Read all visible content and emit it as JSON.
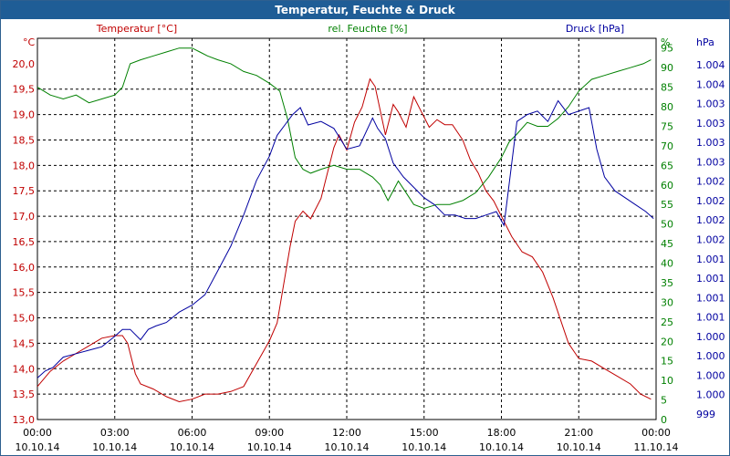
{
  "chart_data": {
    "type": "line",
    "title": "Temperatur, Feuchte & Druck",
    "legend": {
      "temperature": "Temperatur [°C]",
      "humidity": "rel. Feuchte [%]",
      "pressure": "Druck [hPa]"
    },
    "axes": {
      "left_unit": "°C",
      "right1_unit": "%",
      "right2_unit": "hPa",
      "left_ylim": [
        13.0,
        20.5
      ],
      "right1_ylim": [
        0,
        97.5
      ],
      "right2_ylim": [
        999.0,
        1004.5
      ],
      "left_ticks": [
        "20,0",
        "19,5",
        "19,0",
        "18,5",
        "18,0",
        "17,5",
        "17,0",
        "16,5",
        "16,0",
        "15,5",
        "15,0",
        "14,5",
        "14,0",
        "13,5",
        "13,0"
      ],
      "humidity_ticks": [
        "95",
        "90",
        "85",
        "80",
        "75",
        "70",
        "65",
        "60",
        "55",
        "50",
        "45",
        "40",
        "35",
        "30",
        "25",
        "20",
        "15",
        "10",
        "5",
        "0"
      ],
      "pressure_ticks": [
        "1.004",
        "1.004",
        "1.003",
        "1.003",
        "1.003",
        "1.003",
        "1.002",
        "1.002",
        "1.002",
        "1.002",
        "1.001",
        "1.001",
        "1.001",
        "1.001",
        "1.000",
        "1.000",
        "1.000",
        "1.000",
        "999"
      ],
      "x_time_labels": [
        "00:00",
        "03:00",
        "06:00",
        "09:00",
        "12:00",
        "15:00",
        "18:00",
        "21:00",
        "00:00"
      ],
      "x_date_labels": [
        "10.10.14",
        "10.10.14",
        "10.10.14",
        "10.10.14",
        "10.10.14",
        "10.10.14",
        "10.10.14",
        "10.10.14",
        "11.10.14"
      ],
      "xlim_hours": [
        0,
        24
      ]
    },
    "colors": {
      "temperature": "#c00000",
      "humidity": "#008000",
      "pressure": "#0000a0",
      "titlebar": "#1f5d96"
    },
    "series": [
      {
        "name": "Temperatur [°C]",
        "key": "temperature",
        "points": [
          [
            0,
            13.65
          ],
          [
            0.5,
            13.95
          ],
          [
            1,
            14.15
          ],
          [
            1.5,
            14.3
          ],
          [
            2,
            14.45
          ],
          [
            2.5,
            14.6
          ],
          [
            3,
            14.65
          ],
          [
            3.3,
            14.65
          ],
          [
            3.5,
            14.5
          ],
          [
            3.8,
            13.9
          ],
          [
            4,
            13.7
          ],
          [
            4.5,
            13.6
          ],
          [
            5,
            13.45
          ],
          [
            5.5,
            13.35
          ],
          [
            6,
            13.4
          ],
          [
            6.5,
            13.5
          ],
          [
            7,
            13.5
          ],
          [
            7.5,
            13.55
          ],
          [
            8,
            13.65
          ],
          [
            8.5,
            14.1
          ],
          [
            9,
            14.55
          ],
          [
            9.3,
            14.9
          ],
          [
            9.6,
            15.8
          ],
          [
            9.8,
            16.4
          ],
          [
            10,
            16.9
          ],
          [
            10.3,
            17.1
          ],
          [
            10.6,
            16.95
          ],
          [
            11,
            17.35
          ],
          [
            11.3,
            17.95
          ],
          [
            11.5,
            18.35
          ],
          [
            11.7,
            18.6
          ],
          [
            12,
            18.3
          ],
          [
            12.3,
            18.85
          ],
          [
            12.6,
            19.15
          ],
          [
            12.9,
            19.7
          ],
          [
            13.1,
            19.55
          ],
          [
            13.5,
            18.6
          ],
          [
            13.8,
            19.2
          ],
          [
            14,
            19.05
          ],
          [
            14.3,
            18.75
          ],
          [
            14.6,
            19.35
          ],
          [
            14.9,
            19.05
          ],
          [
            15.2,
            18.75
          ],
          [
            15.5,
            18.9
          ],
          [
            15.8,
            18.8
          ],
          [
            16.1,
            18.8
          ],
          [
            16.5,
            18.5
          ],
          [
            16.8,
            18.1
          ],
          [
            17.1,
            17.85
          ],
          [
            17.4,
            17.5
          ],
          [
            17.7,
            17.3
          ],
          [
            18,
            17.0
          ],
          [
            18.4,
            16.6
          ],
          [
            18.8,
            16.3
          ],
          [
            19.2,
            16.2
          ],
          [
            19.6,
            15.9
          ],
          [
            20,
            15.4
          ],
          [
            20.3,
            14.95
          ],
          [
            20.6,
            14.5
          ],
          [
            21,
            14.2
          ],
          [
            21.5,
            14.15
          ],
          [
            22,
            14.0
          ],
          [
            22.5,
            13.85
          ],
          [
            23,
            13.7
          ],
          [
            23.4,
            13.5
          ],
          [
            23.8,
            13.4
          ]
        ]
      },
      {
        "name": "rel. Feuchte [%]",
        "key": "humidity",
        "points": [
          [
            0,
            85
          ],
          [
            0.5,
            83
          ],
          [
            1,
            82
          ],
          [
            1.5,
            83
          ],
          [
            2,
            81
          ],
          [
            2.5,
            82
          ],
          [
            3,
            83
          ],
          [
            3.3,
            85
          ],
          [
            3.6,
            91
          ],
          [
            4,
            92
          ],
          [
            4.5,
            93
          ],
          [
            5,
            94
          ],
          [
            5.5,
            95
          ],
          [
            6,
            95
          ],
          [
            6.3,
            94
          ],
          [
            6.6,
            93
          ],
          [
            7,
            92
          ],
          [
            7.5,
            91
          ],
          [
            8,
            89
          ],
          [
            8.5,
            88
          ],
          [
            9,
            86
          ],
          [
            9.4,
            84
          ],
          [
            9.7,
            77
          ],
          [
            10,
            67
          ],
          [
            10.3,
            64
          ],
          [
            10.6,
            63
          ],
          [
            11,
            64
          ],
          [
            11.5,
            65
          ],
          [
            12,
            64
          ],
          [
            12.5,
            64
          ],
          [
            13,
            62
          ],
          [
            13.3,
            60
          ],
          [
            13.6,
            56
          ],
          [
            14,
            61
          ],
          [
            14.3,
            58
          ],
          [
            14.6,
            55
          ],
          [
            15,
            54
          ],
          [
            15.5,
            55
          ],
          [
            16,
            55
          ],
          [
            16.5,
            56
          ],
          [
            17,
            58
          ],
          [
            17.5,
            62
          ],
          [
            18,
            67
          ],
          [
            18.3,
            71
          ],
          [
            18.6,
            73
          ],
          [
            19,
            76
          ],
          [
            19.4,
            75
          ],
          [
            19.8,
            75
          ],
          [
            20.2,
            77
          ],
          [
            20.6,
            80
          ],
          [
            21,
            84
          ],
          [
            21.5,
            87
          ],
          [
            22,
            88
          ],
          [
            22.5,
            89
          ],
          [
            23,
            90
          ],
          [
            23.5,
            91
          ],
          [
            23.8,
            92
          ]
        ]
      },
      {
        "name": "Druck [hPa]",
        "key": "pressure",
        "points": [
          [
            0,
            999.6
          ],
          [
            0.3,
            999.7
          ],
          [
            0.6,
            999.75
          ],
          [
            1,
            999.9
          ],
          [
            1.5,
            999.95
          ],
          [
            2,
            1000.0
          ],
          [
            2.5,
            1000.05
          ],
          [
            3,
            1000.2
          ],
          [
            3.3,
            1000.3
          ],
          [
            3.6,
            1000.3
          ],
          [
            4,
            1000.15
          ],
          [
            4.3,
            1000.3
          ],
          [
            4.6,
            1000.35
          ],
          [
            5,
            1000.4
          ],
          [
            5.5,
            1000.55
          ],
          [
            6,
            1000.65
          ],
          [
            6.5,
            1000.8
          ],
          [
            7,
            1001.15
          ],
          [
            7.5,
            1001.5
          ],
          [
            8,
            1001.95
          ],
          [
            8.5,
            1002.45
          ],
          [
            9,
            1002.8
          ],
          [
            9.3,
            1003.1
          ],
          [
            9.6,
            1003.25
          ],
          [
            9.9,
            1003.4
          ],
          [
            10.2,
            1003.5
          ],
          [
            10.5,
            1003.25
          ],
          [
            11,
            1003.3
          ],
          [
            11.5,
            1003.2
          ],
          [
            12,
            1002.9
          ],
          [
            12.5,
            1002.95
          ],
          [
            13,
            1003.35
          ],
          [
            13.2,
            1003.2
          ],
          [
            13.5,
            1003.05
          ],
          [
            13.8,
            1002.7
          ],
          [
            14.2,
            1002.5
          ],
          [
            14.6,
            1002.35
          ],
          [
            15,
            1002.2
          ],
          [
            15.4,
            1002.1
          ],
          [
            15.8,
            1001.95
          ],
          [
            16.2,
            1001.95
          ],
          [
            16.6,
            1001.9
          ],
          [
            17,
            1001.9
          ],
          [
            17.4,
            1001.95
          ],
          [
            17.8,
            1002.0
          ],
          [
            18.1,
            1001.8
          ],
          [
            18.3,
            1002.4
          ],
          [
            18.6,
            1003.3
          ],
          [
            19,
            1003.4
          ],
          [
            19.4,
            1003.45
          ],
          [
            19.8,
            1003.3
          ],
          [
            20.2,
            1003.6
          ],
          [
            20.6,
            1003.4
          ],
          [
            21,
            1003.45
          ],
          [
            21.4,
            1003.5
          ],
          [
            21.7,
            1002.9
          ],
          [
            22,
            1002.5
          ],
          [
            22.4,
            1002.3
          ],
          [
            22.8,
            1002.2
          ],
          [
            23.2,
            1002.1
          ],
          [
            23.6,
            1002.0
          ],
          [
            23.9,
            1001.9
          ]
        ]
      }
    ]
  }
}
